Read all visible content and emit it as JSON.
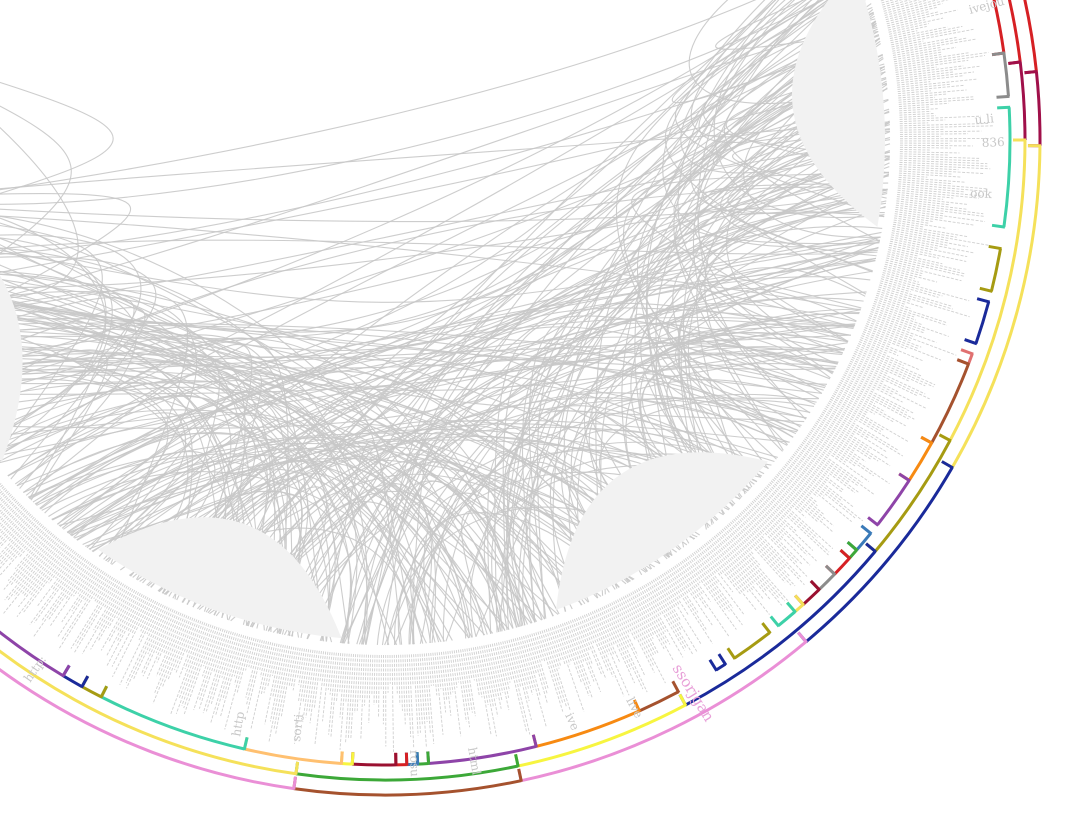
{
  "diagram": {
    "type": "hierarchical-edge-bundling",
    "node_label_color": "#c8c8c8",
    "edge_color": "#c8c8c8",
    "background": "#ffffff",
    "visible_labels": [
      "ivejou",
      "u.li",
      "836",
      "ook",
      "http:",
      "ssor",
      "ssorjgan",
      "live",
      "ive",
      "http",
      "rosu",
      "sorti",
      "html"
    ],
    "highlight_label": {
      "text": "ssorjgan",
      "color": "#e8a0d8"
    }
  },
  "palette": {
    "steel_blue": "#3a7ab8",
    "red": "#d62024",
    "crimson": "#a0104a",
    "gray": "#8c8c8c",
    "yellow": "#f5e15a",
    "bright_yellow": "#f7f540",
    "teal": "#3dd1a8",
    "olive": "#a69b12",
    "navy": "#1a2a9a",
    "salmon": "#e07070",
    "brown": "#a5522e",
    "orange": "#f78a12",
    "purple": "#8e44a8",
    "pink": "#ea8fd6",
    "green": "#3ca838",
    "light_orange": "#ffc070",
    "dark_red": "#9a1030"
  }
}
